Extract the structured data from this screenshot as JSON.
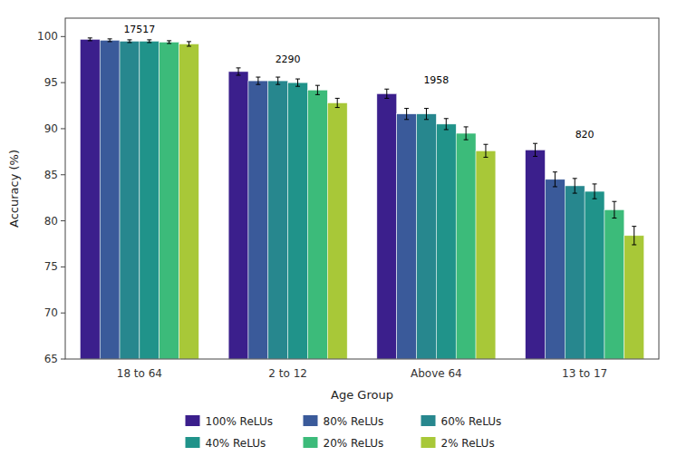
{
  "chart_data": {
    "type": "bar",
    "xlabel": "Age Group",
    "ylabel": "Accuracy (%)",
    "categories": [
      "18 to 64",
      "2 to 12",
      "Above 64",
      "13 to 17"
    ],
    "sample_sizes": [
      17517,
      2290,
      1958,
      820
    ],
    "series": [
      {
        "name": "100% ReLUs",
        "color": "#3b1f8c",
        "values": [
          99.7,
          96.2,
          93.8,
          87.7
        ],
        "errors": [
          0.15,
          0.4,
          0.5,
          0.7
        ]
      },
      {
        "name": "80% ReLUs",
        "color": "#3a5a9a",
        "values": [
          99.6,
          95.2,
          91.6,
          84.5
        ],
        "errors": [
          0.15,
          0.4,
          0.6,
          0.8
        ]
      },
      {
        "name": "60% ReLUs",
        "color": "#27878e",
        "values": [
          99.5,
          95.2,
          91.6,
          83.8
        ],
        "errors": [
          0.15,
          0.4,
          0.6,
          0.8
        ]
      },
      {
        "name": "40% ReLUs",
        "color": "#20938a",
        "values": [
          99.5,
          95.0,
          90.5,
          83.2
        ],
        "errors": [
          0.15,
          0.4,
          0.6,
          0.8
        ]
      },
      {
        "name": "20% ReLUs",
        "color": "#3cbb7a",
        "values": [
          99.4,
          94.2,
          89.5,
          81.2
        ],
        "errors": [
          0.15,
          0.5,
          0.7,
          0.9
        ]
      },
      {
        "name": "2% ReLUs",
        "color": "#a8c838",
        "values": [
          99.2,
          92.8,
          87.6,
          78.4
        ],
        "errors": [
          0.25,
          0.5,
          0.7,
          1.0
        ]
      }
    ],
    "ylim": [
      65,
      102
    ],
    "yticks": [
      65,
      70,
      75,
      80,
      85,
      90,
      95,
      100
    ],
    "grid": false,
    "legend": "bottom"
  }
}
